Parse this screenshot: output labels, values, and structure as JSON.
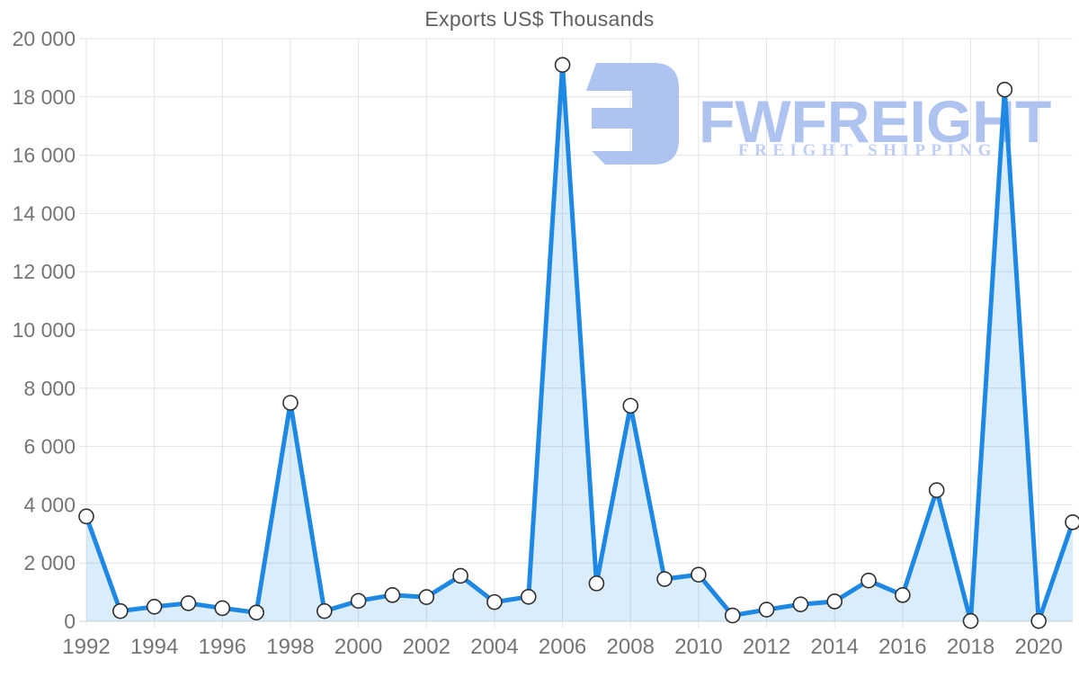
{
  "title": "Exports US$ Thousands",
  "watermark": {
    "brand": "FWFREIGHT",
    "tagline": "FREIGHT SHIPPING",
    "icon": "fwfreight-logo-icon",
    "color": "#a6bdee",
    "tagline_color": "#b7c9f3",
    "opacity": 0.9
  },
  "chart_data": {
    "type": "area",
    "title": "Exports US$ Thousands",
    "xlabel": "",
    "ylabel": "",
    "x": [
      1992,
      1993,
      1994,
      1995,
      1996,
      1997,
      1998,
      1999,
      2000,
      2001,
      2002,
      2003,
      2004,
      2005,
      2006,
      2007,
      2008,
      2009,
      2010,
      2011,
      2012,
      2013,
      2014,
      2015,
      2016,
      2017,
      2018,
      2019,
      2020,
      2021
    ],
    "values": [
      3600,
      350,
      500,
      620,
      450,
      300,
      7500,
      350,
      700,
      900,
      830,
      1560,
      660,
      840,
      19100,
      1300,
      7400,
      1450,
      1600,
      200,
      400,
      580,
      680,
      1400,
      900,
      4500,
      10,
      18250,
      10,
      3400
    ],
    "ylim": [
      0,
      20000
    ],
    "y_tick_step": 2000,
    "y_tick_labels": [
      "0",
      "2 000",
      "4 000",
      "6 000",
      "8 000",
      "10 000",
      "12 000",
      "14 000",
      "16 000",
      "18 000",
      "20 000"
    ],
    "x_ticks": [
      1992,
      1994,
      1996,
      1998,
      2000,
      2002,
      2004,
      2006,
      2008,
      2010,
      2012,
      2014,
      2016,
      2018,
      2020
    ],
    "grid": true,
    "legend": false,
    "colors": {
      "line": "#1e88e5",
      "fill": "rgba(33, 134, 227, 0.16)",
      "marker_fill": "#ffffff",
      "marker_stroke": "#2f2f2f",
      "grid": "#e4e4e4",
      "grid_baseline": "#d4d4d4",
      "tick_text": "#757575",
      "title_text": "#616161"
    }
  }
}
